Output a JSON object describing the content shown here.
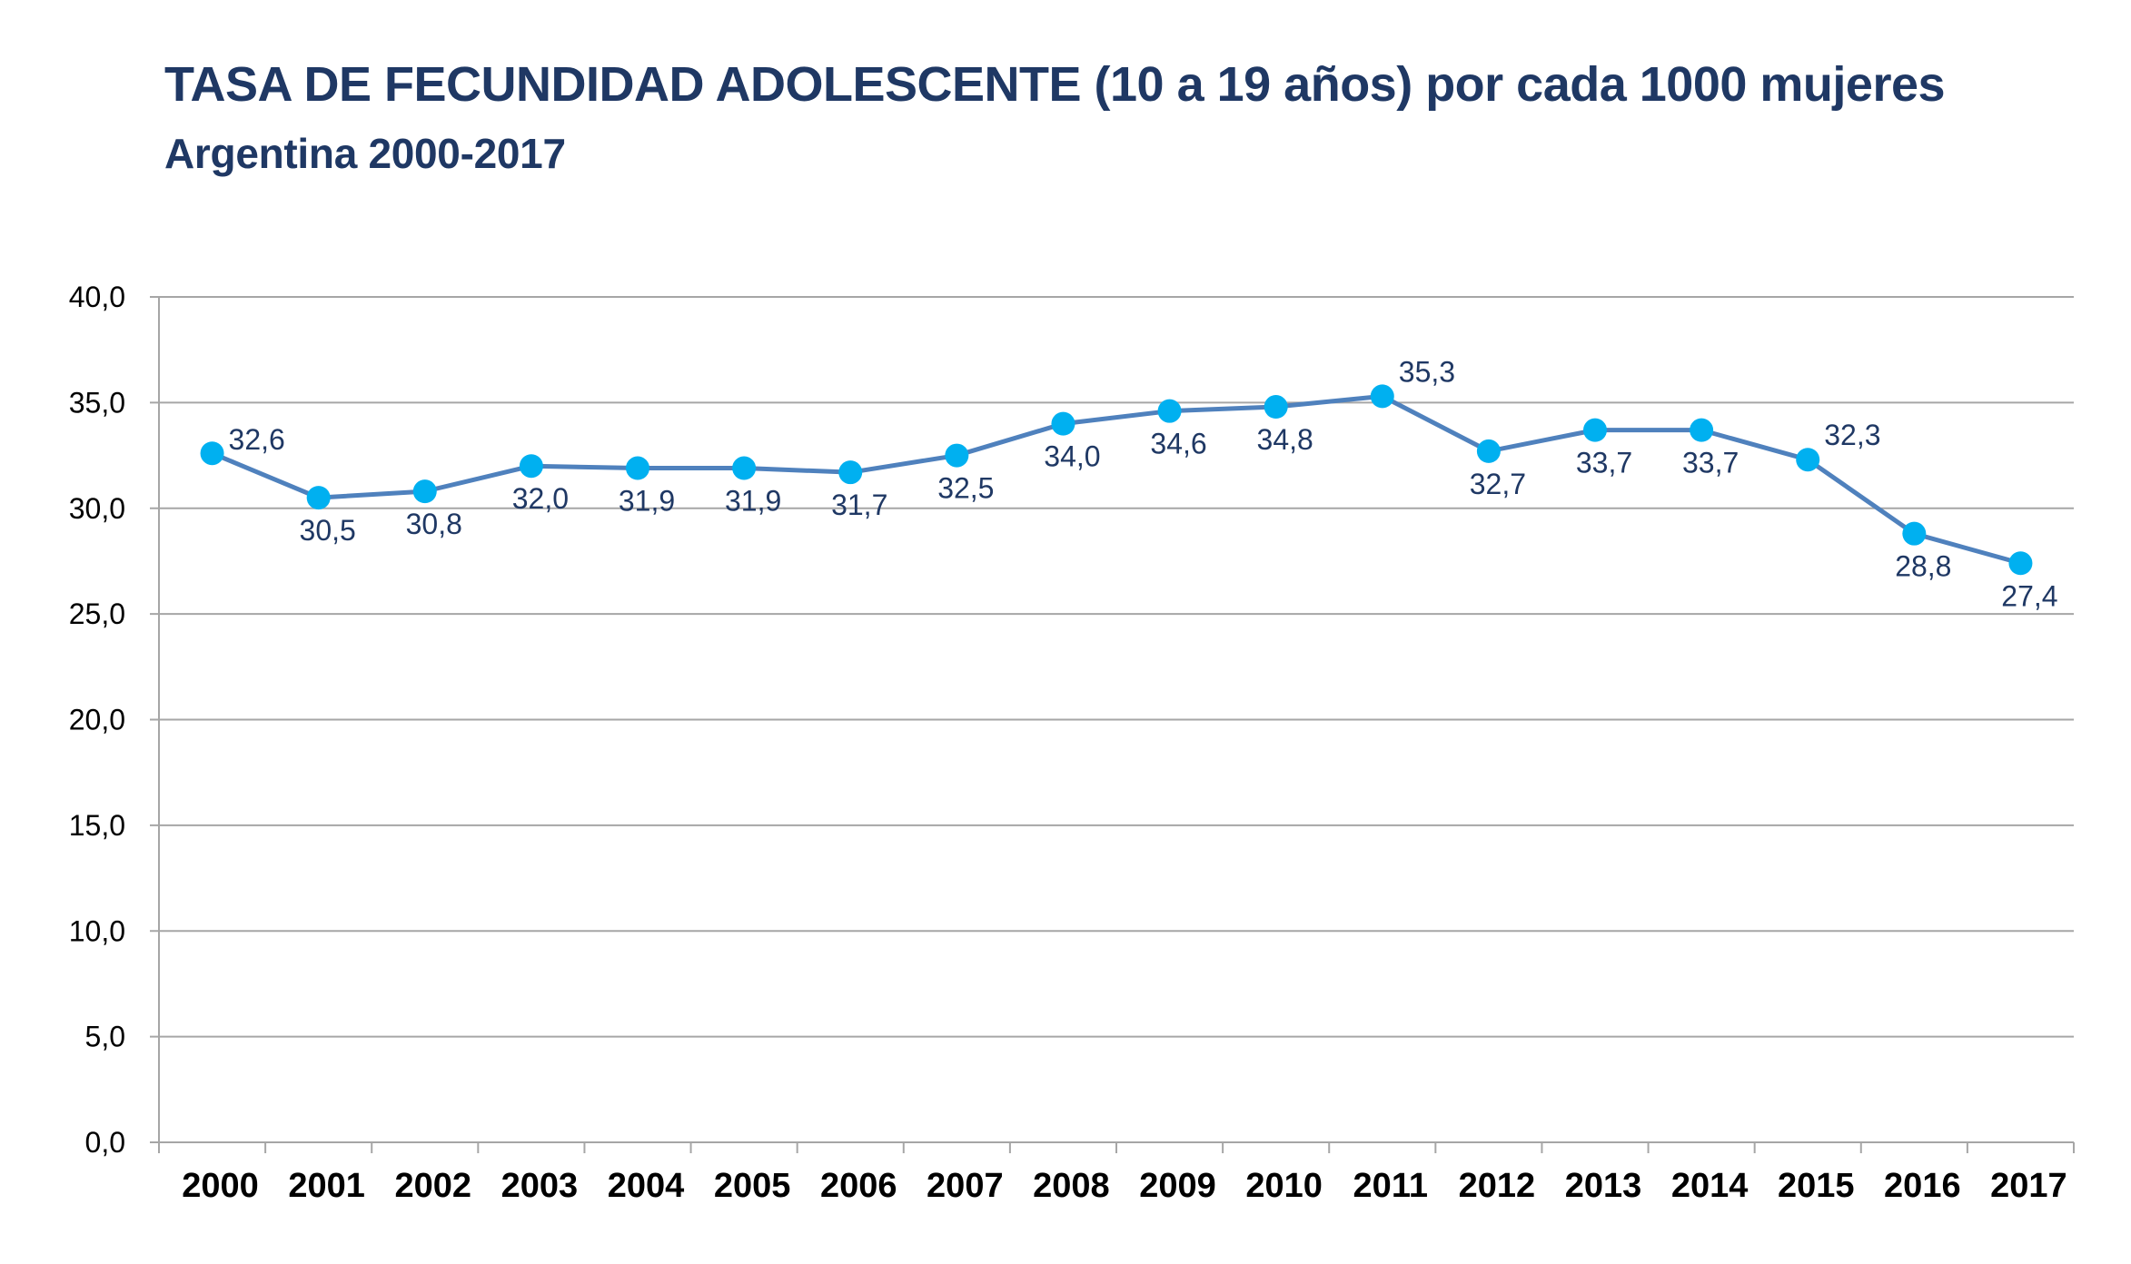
{
  "chart_data": {
    "type": "line",
    "title": "TASA DE FECUNDIDAD ADOLESCENTE (10 a 19 años) por cada 1000 mujeres",
    "subtitle": "Argentina 2000-2017",
    "categories": [
      "2000",
      "2001",
      "2002",
      "2003",
      "2004",
      "2005",
      "2006",
      "2007",
      "2008",
      "2009",
      "2010",
      "2011",
      "2012",
      "2013",
      "2014",
      "2015",
      "2016",
      "2017"
    ],
    "series": [
      {
        "values": [
          32.6,
          30.5,
          30.8,
          32.0,
          31.9,
          31.9,
          31.7,
          32.5,
          34.0,
          34.6,
          34.8,
          35.3,
          32.7,
          33.7,
          33.7,
          32.3,
          28.8,
          27.4
        ],
        "labels": [
          "32,6",
          "30,5",
          "30,8",
          "32,0",
          "31,9",
          "31,9",
          "31,7",
          "32,5",
          "34,0",
          "34,6",
          "34,8",
          "35,3",
          "32,7",
          "33,7",
          "33,7",
          "32,3",
          "28,8",
          "27,4"
        ],
        "label_positions": [
          "right",
          "below",
          "below",
          "below",
          "below",
          "below",
          "below",
          "below",
          "below",
          "below",
          "below",
          "above",
          "below",
          "below",
          "below",
          "above",
          "below",
          "below"
        ]
      }
    ],
    "ylim": [
      0,
      40
    ],
    "yticks": [
      "0,0",
      "5,0",
      "10,0",
      "15,0",
      "20,0",
      "25,0",
      "30,0",
      "35,0",
      "40,0"
    ],
    "grid": true,
    "legend": "none",
    "colors": {
      "line": "#4f81bd",
      "marker": "#00b0f0",
      "label": "#1f3864",
      "grid": "#a6a6a6"
    }
  }
}
